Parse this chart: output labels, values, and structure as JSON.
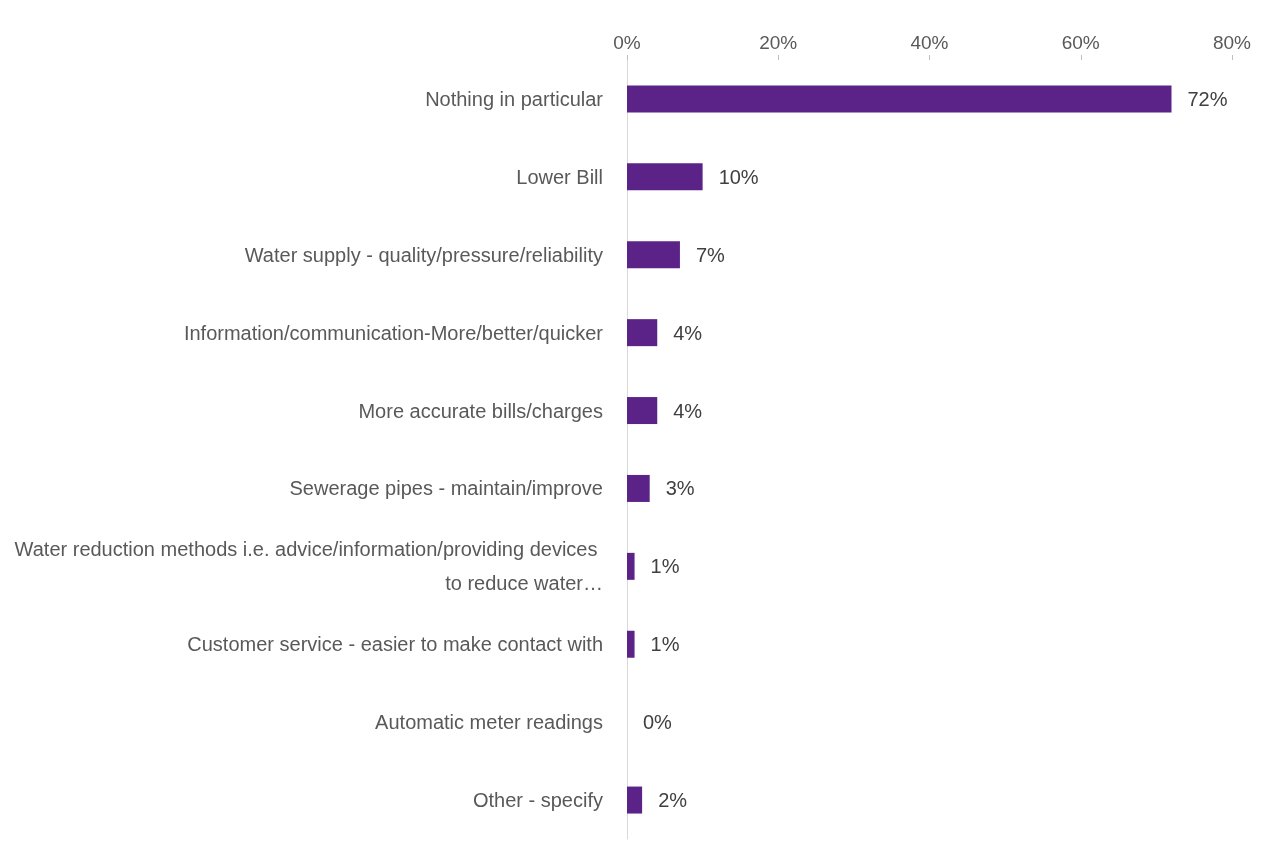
{
  "chart_data": {
    "type": "bar",
    "orientation": "horizontal",
    "categories": [
      "Nothing in particular",
      "Lower Bill",
      "Water supply - quality/pressure/reliability",
      "Information/communication-More/better/quicker",
      "More accurate bills/charges",
      "Sewerage pipes - maintain/improve",
      "Water reduction methods i.e. advice/information/providing devices to reduce water…",
      "Customer service - easier to make contact with",
      "Automatic meter readings",
      "Other - specify"
    ],
    "values": [
      72,
      10,
      7,
      4,
      4,
      3,
      1,
      1,
      0,
      2
    ],
    "color": "#5b2388",
    "xlim": [
      0,
      80
    ],
    "xticks": [
      {
        "value": 0,
        "label": "0%"
      },
      {
        "value": 20,
        "label": "20%"
      },
      {
        "value": 40,
        "label": "40%"
      },
      {
        "value": 60,
        "label": "60%"
      },
      {
        "value": 80,
        "label": "80%"
      }
    ],
    "value_labels": [
      "72%",
      "10%",
      "7%",
      "4%",
      "4%",
      "3%",
      "1%",
      "1%",
      "0%",
      "2%"
    ],
    "grid": false
  }
}
